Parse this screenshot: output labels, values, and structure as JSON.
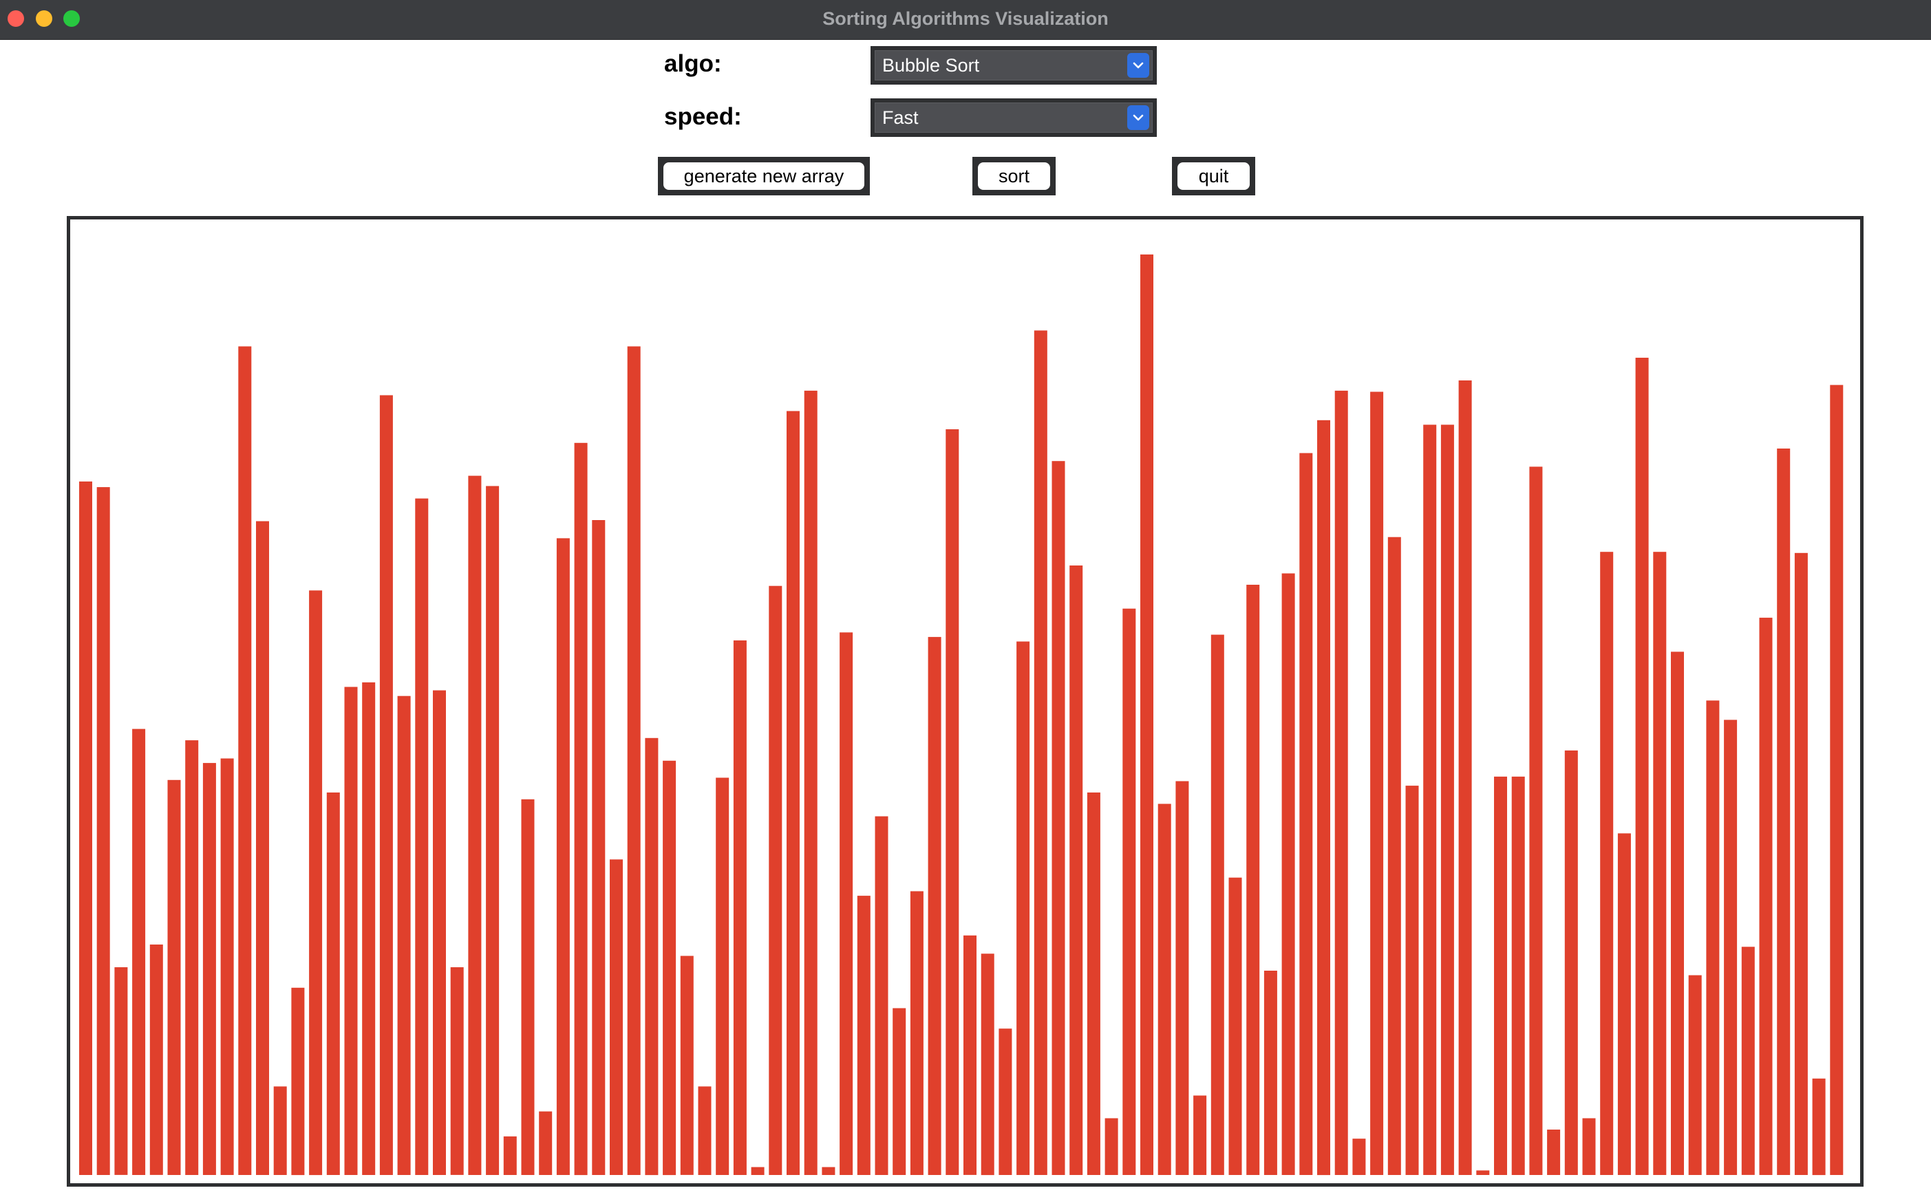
{
  "window": {
    "title": "Sorting Algorithms Visualization"
  },
  "controls": {
    "algo_label": "algo:",
    "algo_value": "Bubble Sort",
    "speed_label": "speed:",
    "speed_value": "Fast",
    "generate_label": "generate new array",
    "sort_label": "sort",
    "quit_label": "quit"
  },
  "icons": {
    "algo_dropdown": "chevron-down-icon",
    "speed_dropdown": "chevron-down-icon"
  },
  "colors": {
    "bar": "#e0402c",
    "accent": "#2f6fe0",
    "frame": "#2e2f31"
  },
  "chart_data": {
    "type": "bar",
    "max_value": 800,
    "values": [
      611,
      606,
      183,
      393,
      203,
      348,
      383,
      363,
      367,
      730,
      576,
      78,
      165,
      515,
      337,
      430,
      434,
      687,
      422,
      596,
      427,
      183,
      616,
      607,
      34,
      331,
      56,
      561,
      645,
      577,
      278,
      730,
      385,
      365,
      193,
      78,
      350,
      471,
      7,
      519,
      673,
      691,
      7,
      478,
      246,
      316,
      147,
      250,
      474,
      657,
      211,
      195,
      129,
      470,
      744,
      629,
      537,
      337,
      50,
      499,
      811,
      327,
      347,
      70,
      476,
      262,
      520,
      180,
      530,
      636,
      665,
      691,
      32,
      690,
      562,
      343,
      661,
      661,
      700,
      4,
      351,
      351,
      624,
      40,
      374,
      50,
      549,
      301,
      720,
      549,
      461,
      176,
      418,
      401,
      201,
      491,
      640,
      548,
      85,
      696
    ]
  }
}
